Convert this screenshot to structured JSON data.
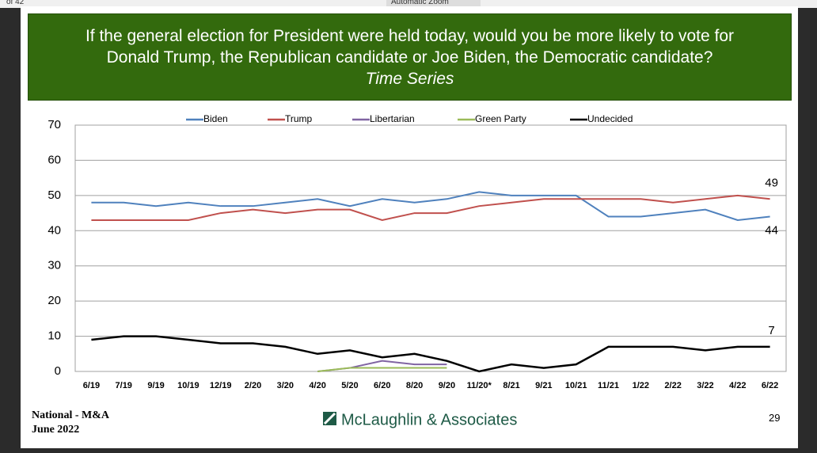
{
  "toolbar": {
    "page_count": "of 42",
    "zoom": "Automatic Zoom"
  },
  "chart_data": {
    "type": "line",
    "title": "If the general election for President were held today, would you be more likely to vote for Donald Trump, the Republican candidate or Joe Biden, the Democratic candidate?",
    "subtitle": "Time Series",
    "categories": [
      "6/19",
      "7/19",
      "9/19",
      "10/19",
      "12/19",
      "2/20",
      "3/20",
      "4/20",
      "5/20",
      "6/20",
      "8/20",
      "9/20",
      "11/20*",
      "8/21",
      "9/21",
      "10/21",
      "11/21",
      "1/22",
      "2/22",
      "3/22",
      "4/22",
      "6/22"
    ],
    "series": [
      {
        "name": "Biden",
        "color": "#4f81bd",
        "data_labels": "last",
        "values": [
          48,
          48,
          47,
          48,
          47,
          47,
          48,
          49,
          47,
          49,
          48,
          49,
          51,
          50,
          50,
          50,
          44,
          44,
          45,
          46,
          43,
          44
        ]
      },
      {
        "name": "Trump",
        "color": "#c0504d",
        "data_labels": "last",
        "values": [
          43,
          43,
          43,
          43,
          45,
          46,
          45,
          46,
          46,
          43,
          45,
          45,
          47,
          48,
          49,
          49,
          49,
          49,
          48,
          49,
          50,
          49
        ]
      },
      {
        "name": "Libertarian",
        "color": "#8064a2",
        "values": [
          null,
          null,
          null,
          null,
          null,
          null,
          null,
          0,
          1,
          3,
          2,
          2,
          null,
          null,
          null,
          null,
          null,
          null,
          null,
          null,
          null,
          null
        ]
      },
      {
        "name": "Green Party",
        "color": "#9bbb59",
        "values": [
          null,
          null,
          null,
          null,
          null,
          null,
          null,
          0,
          1,
          1,
          1,
          1,
          null,
          null,
          null,
          null,
          null,
          null,
          null,
          null,
          null,
          null
        ]
      },
      {
        "name": "Undecided",
        "color": "#000000",
        "data_labels": "last",
        "values": [
          9,
          10,
          10,
          9,
          8,
          8,
          7,
          5,
          6,
          4,
          5,
          3,
          0,
          2,
          1,
          2,
          7,
          7,
          7,
          6,
          7,
          7
        ]
      }
    ],
    "ylim": [
      0,
      70
    ],
    "yticks": [
      0,
      10,
      20,
      30,
      40,
      50,
      60,
      70
    ],
    "grid": true,
    "legend": "top"
  },
  "footer": {
    "source": "National - M&A",
    "date": "June 2022",
    "logo": "McLaughlin & Associates",
    "page": "29"
  }
}
